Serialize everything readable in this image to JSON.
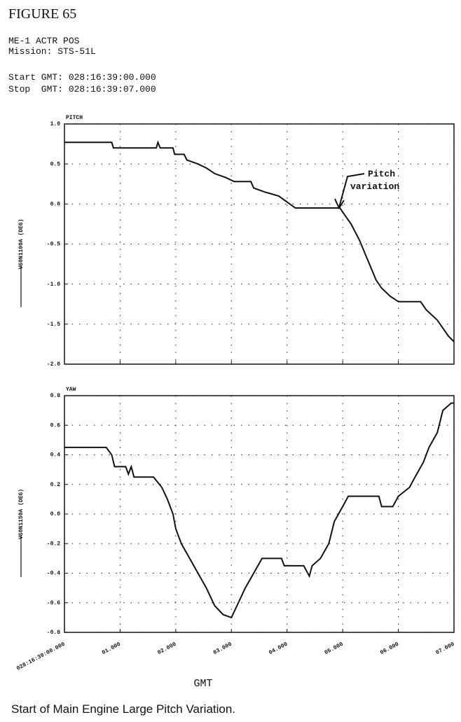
{
  "header": {
    "figure": "FIGURE 65",
    "lines": [
      "ME-1 ACTR POS",
      "Mission: STS-51L",
      "Start GMT: 028:16:39:00.000",
      "Stop  GMT: 028:16:39:07.000"
    ]
  },
  "chart_data": [
    {
      "type": "line",
      "title": "PITCH",
      "annotation": [
        "Pitch",
        "variation"
      ],
      "x": [
        0,
        0.85,
        0.88,
        1.65,
        1.68,
        1.72,
        1.95,
        1.98,
        2.15,
        2.2,
        2.4,
        2.55,
        2.7,
        2.9,
        3.05,
        3.35,
        3.4,
        3.6,
        3.85,
        3.95,
        4.05,
        4.15,
        4.95,
        5.0,
        5.15,
        5.3,
        5.45,
        5.6,
        5.7,
        5.85,
        6.0,
        6.4,
        6.5,
        6.7,
        6.8,
        6.9,
        7.0
      ],
      "series": [
        {
          "name": "VS0N1100A (DEG)",
          "color": "#111111",
          "values": [
            0.77,
            0.77,
            0.7,
            0.7,
            0.77,
            0.7,
            0.7,
            0.62,
            0.62,
            0.55,
            0.5,
            0.45,
            0.38,
            0.33,
            0.28,
            0.28,
            0.2,
            0.15,
            0.1,
            0.05,
            0.0,
            -0.05,
            -0.05,
            -0.1,
            -0.25,
            -0.45,
            -0.7,
            -0.95,
            -1.05,
            -1.15,
            -1.22,
            -1.22,
            -1.32,
            -1.45,
            -1.55,
            -1.65,
            -1.72
          ]
        }
      ],
      "xlim": [
        0,
        7
      ],
      "ylim": [
        -2,
        1
      ],
      "yticks": [
        {
          "value": 1,
          "label": "1.0"
        },
        0.5,
        {
          "value": 0,
          "label": "0.0"
        },
        -0.5,
        {
          "value": -1,
          "label": "-1.0"
        },
        -1.5,
        {
          "value": -2,
          "label": "-2.0"
        }
      ],
      "grid": true
    },
    {
      "type": "line",
      "title": "YAW",
      "xlabel": "GMT",
      "x": [
        0,
        0.75,
        0.85,
        0.9,
        1.1,
        1.15,
        1.2,
        1.25,
        1.6,
        1.75,
        1.85,
        1.95,
        2.0,
        2.1,
        2.25,
        2.4,
        2.55,
        2.7,
        2.85,
        3.0,
        3.1,
        3.25,
        3.4,
        3.55,
        3.9,
        3.95,
        4.3,
        4.4,
        4.45,
        4.6,
        4.75,
        4.85,
        5.0,
        5.1,
        5.65,
        5.7,
        5.9,
        6.0,
        6.2,
        6.3,
        6.45,
        6.55,
        6.7,
        6.8,
        6.95,
        7.0
      ],
      "series": [
        {
          "name": "VS0N1150A (DEG)",
          "color": "#111111",
          "values": [
            0.45,
            0.45,
            0.4,
            0.32,
            0.32,
            0.27,
            0.32,
            0.25,
            0.25,
            0.18,
            0.1,
            0.0,
            -0.1,
            -0.2,
            -0.3,
            -0.4,
            -0.5,
            -0.62,
            -0.68,
            -0.7,
            -0.62,
            -0.5,
            -0.4,
            -0.3,
            -0.3,
            -0.35,
            -0.35,
            -0.42,
            -0.35,
            -0.3,
            -0.2,
            -0.05,
            0.05,
            0.12,
            0.12,
            0.05,
            0.05,
            0.12,
            0.18,
            0.25,
            0.35,
            0.45,
            0.55,
            0.7,
            0.75,
            0.75
          ]
        }
      ],
      "xlim": [
        0,
        7
      ],
      "ylim": [
        -0.8,
        0.8
      ],
      "xticks": [
        {
          "value": 0,
          "label": "028:16:39:00.000"
        },
        {
          "value": 1,
          "label": "01.000"
        },
        {
          "value": 2,
          "label": "02.000"
        },
        {
          "value": 3,
          "label": "03.000"
        },
        {
          "value": 4,
          "label": "04.000"
        },
        {
          "value": 5,
          "label": "05.000"
        },
        {
          "value": 6,
          "label": "06.000"
        },
        {
          "value": 7,
          "label": "07.000"
        }
      ],
      "yticks": [
        0.8,
        0.6,
        0.4,
        0.2,
        {
          "value": 0,
          "label": "0.0"
        },
        -0.2,
        -0.4,
        -0.6,
        -0.8
      ],
      "grid": true
    }
  ],
  "caption": "Start of Main Engine Large Pitch Variation."
}
